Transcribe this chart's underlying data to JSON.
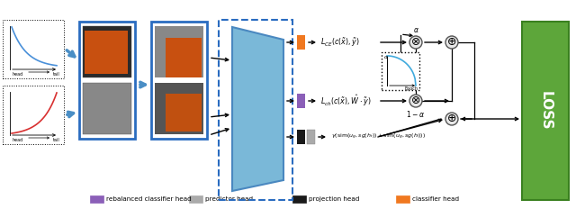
{
  "legend_items": [
    {
      "label": "rebalanced classifier head",
      "color": "#8B5FB8"
    },
    {
      "label": "predictor head",
      "color": "#AAAAAA"
    },
    {
      "label": "projection head",
      "color": "#1A1A1A"
    },
    {
      "label": "classifier head",
      "color": "#F07820"
    }
  ],
  "loss_color": "#5DA63A",
  "loss_text": "LOSS",
  "encoder_color": "#7AB8D8",
  "encoder_edge": "#4A88C0",
  "blue_arrow_color": "#4A8EC5",
  "img_box_edge": "#2A6CC0",
  "dashed_box_edge": "#2A6CC0"
}
